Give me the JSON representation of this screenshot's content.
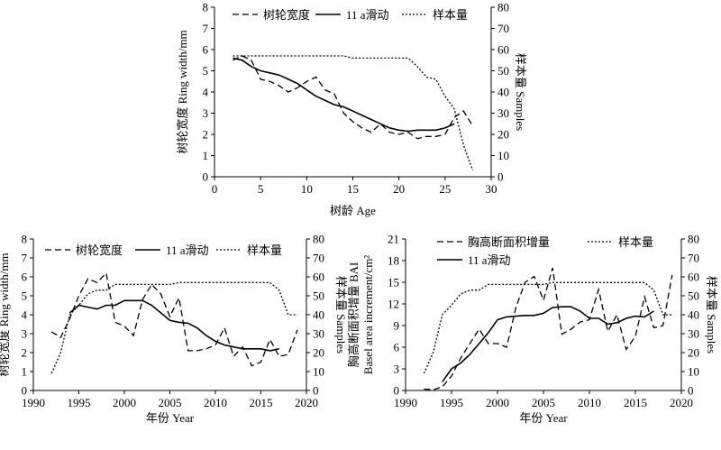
{
  "chart_data": [
    {
      "type": "line",
      "xlabel": "树龄 Age",
      "ylabel_left": "树轮宽度 Ring width/mm",
      "ylabel_right": "样本量 Samples",
      "xlim": [
        0,
        30
      ],
      "xticks": [
        0,
        5,
        10,
        15,
        20,
        25,
        30
      ],
      "ylim_left": [
        0,
        8
      ],
      "yticks_left": [
        0,
        1,
        2,
        3,
        4,
        5,
        6,
        7,
        8
      ],
      "ylim_right": [
        0,
        80
      ],
      "yticks_right": [
        0,
        10,
        20,
        30,
        40,
        50,
        60,
        70,
        80
      ],
      "legend": {
        "position": "top",
        "entries": [
          "树轮宽度",
          "11 a滑动",
          "样本量"
        ]
      },
      "series": [
        {
          "name": "树轮宽度",
          "axis": "left",
          "style": "dashed",
          "x": [
            2,
            3,
            4,
            5,
            6,
            7,
            8,
            9,
            10,
            11,
            12,
            13,
            14,
            15,
            16,
            17,
            18,
            19,
            20,
            21,
            22,
            23,
            24,
            25,
            26,
            27,
            28
          ],
          "y": [
            5.5,
            5.7,
            5.5,
            4.6,
            4.5,
            4.3,
            4.0,
            4.2,
            4.5,
            4.7,
            4.1,
            3.9,
            3.0,
            2.6,
            2.3,
            2.1,
            2.5,
            2.1,
            2.0,
            2.1,
            1.8,
            1.9,
            1.9,
            2.0,
            2.8,
            3.1,
            2.4
          ]
        },
        {
          "name": "11 a滑动",
          "axis": "left",
          "style": "solid",
          "x": [
            2,
            3,
            4,
            5,
            6,
            7,
            8,
            9,
            10,
            11,
            12,
            13,
            14,
            15,
            16,
            17,
            18,
            19,
            20,
            21,
            22,
            23,
            24,
            25,
            26
          ],
          "y": [
            5.6,
            5.5,
            5.2,
            5.0,
            4.9,
            4.8,
            4.6,
            4.4,
            4.1,
            3.8,
            3.6,
            3.4,
            3.3,
            3.1,
            2.9,
            2.7,
            2.5,
            2.3,
            2.2,
            2.15,
            2.2,
            2.2,
            2.2,
            2.3,
            2.5
          ]
        },
        {
          "name": "样本量",
          "axis": "right",
          "style": "dotted",
          "x": [
            2,
            3,
            4,
            5,
            6,
            7,
            8,
            9,
            10,
            11,
            12,
            13,
            14,
            15,
            16,
            17,
            18,
            19,
            20,
            21,
            22,
            23,
            24,
            25,
            26,
            27,
            28
          ],
          "y": [
            57,
            57,
            57,
            57,
            57,
            57,
            57,
            57,
            57,
            57,
            57,
            57,
            57,
            56,
            56,
            56,
            56,
            56,
            56,
            56,
            52,
            47,
            46,
            38,
            32,
            15,
            3
          ]
        }
      ]
    },
    {
      "type": "line",
      "xlabel": "年份 Year",
      "ylabel_left": "树轮宽度 Ring width/mm",
      "ylabel_right": "样本量 Samples",
      "xlim": [
        1990,
        2020
      ],
      "xticks": [
        1990,
        1995,
        2000,
        2005,
        2010,
        2015,
        2020
      ],
      "ylim_left": [
        0,
        8
      ],
      "yticks_left": [
        0,
        1,
        2,
        3,
        4,
        5,
        6,
        7,
        8
      ],
      "ylim_right": [
        0,
        80
      ],
      "yticks_right": [
        0,
        10,
        20,
        30,
        40,
        50,
        60,
        70,
        80
      ],
      "legend": {
        "position": "top",
        "entries": [
          "树轮宽度",
          "11 a滑动",
          "样本量"
        ]
      },
      "series": [
        {
          "name": "树轮宽度",
          "axis": "left",
          "style": "dashed",
          "x": [
            1992,
            1993,
            1994,
            1995,
            1996,
            1997,
            1998,
            1999,
            2000,
            2001,
            2002,
            2003,
            2004,
            2005,
            2006,
            2007,
            2008,
            2009,
            2010,
            2011,
            2012,
            2013,
            2014,
            2015,
            2016,
            2017,
            2018,
            2019
          ],
          "y": [
            3.1,
            2.8,
            3.8,
            5.0,
            5.9,
            5.7,
            6.2,
            3.6,
            3.4,
            2.9,
            4.8,
            5.6,
            5.1,
            3.9,
            4.9,
            2.1,
            2.1,
            2.2,
            2.4,
            3.3,
            1.8,
            2.3,
            1.3,
            1.5,
            2.7,
            1.8,
            1.9,
            3.2
          ]
        },
        {
          "name": "11 a滑动",
          "axis": "left",
          "style": "solid",
          "x": [
            1994,
            1995,
            1996,
            1997,
            1998,
            1999,
            2000,
            2001,
            2002,
            2003,
            2004,
            2005,
            2006,
            2007,
            2008,
            2009,
            2010,
            2011,
            2012,
            2013,
            2014,
            2015,
            2016,
            2017
          ],
          "y": [
            4.1,
            4.5,
            4.4,
            4.3,
            4.5,
            4.5,
            4.75,
            4.75,
            4.75,
            4.5,
            4.1,
            3.7,
            3.6,
            3.55,
            3.3,
            2.9,
            2.6,
            2.4,
            2.3,
            2.2,
            2.2,
            2.2,
            2.1,
            2.2
          ]
        },
        {
          "name": "样本量",
          "axis": "right",
          "style": "dotted",
          "x": [
            1992,
            1993,
            1994,
            1995,
            1996,
            1997,
            1998,
            1999,
            2000,
            2001,
            2002,
            2003,
            2004,
            2005,
            2006,
            2007,
            2008,
            2009,
            2010,
            2011,
            2012,
            2013,
            2014,
            2015,
            2016,
            2017,
            2018,
            2019
          ],
          "y": [
            9,
            20,
            40,
            45,
            51,
            53,
            53,
            56,
            56,
            56,
            56,
            56,
            56,
            56,
            57,
            57,
            57,
            57,
            57,
            57,
            57,
            57,
            57,
            57,
            57,
            53,
            40,
            40
          ]
        }
      ]
    },
    {
      "type": "line",
      "xlabel": "年份 Year",
      "ylabel_left": "胸高断面积增量 BAI Basel area increment/cm²",
      "ylabel_right": "样本量 Samples",
      "xlim": [
        1990,
        2020
      ],
      "xticks": [
        1990,
        1995,
        2000,
        2005,
        2010,
        2015,
        2020
      ],
      "ylim_left": [
        0,
        21
      ],
      "yticks_left": [
        0,
        3,
        6,
        9,
        12,
        15,
        18,
        21
      ],
      "ylim_right": [
        0,
        80
      ],
      "yticks_right": [
        0,
        10,
        20,
        30,
        40,
        50,
        60,
        70,
        80
      ],
      "legend": {
        "position": "top",
        "entries": [
          "胸高断面积增量",
          "样本量",
          "11 a滑动"
        ]
      },
      "series": [
        {
          "name": "胸高断面积增量",
          "axis": "left",
          "style": "dashed",
          "x": [
            1992,
            1993,
            1994,
            1995,
            1996,
            1997,
            1998,
            1999,
            2000,
            2001,
            2002,
            2003,
            2004,
            2005,
            2006,
            2007,
            2008,
            2009,
            2010,
            2011,
            2012,
            2013,
            2014,
            2015,
            2016,
            2017,
            2018,
            2019
          ],
          "y": [
            0.2,
            0.1,
            0.5,
            2.0,
            4.5,
            6.5,
            8.5,
            6.5,
            6.5,
            6.0,
            11.5,
            15.0,
            15.8,
            12.5,
            17.0,
            7.8,
            8.5,
            9.5,
            9.8,
            14.0,
            8.2,
            10.5,
            5.7,
            7.5,
            13.0,
            8.7,
            9.0,
            16.0
          ]
        },
        {
          "name": "11 a滑动",
          "axis": "left",
          "style": "solid",
          "x": [
            1994,
            1995,
            1996,
            1997,
            1998,
            1999,
            2000,
            2001,
            2002,
            2003,
            2004,
            2005,
            2006,
            2007,
            2008,
            2009,
            2010,
            2011,
            2012,
            2013,
            2014,
            2015,
            2016,
            2017
          ],
          "y": [
            1.2,
            3.0,
            3.8,
            5.0,
            6.5,
            8.0,
            9.8,
            10.2,
            10.3,
            10.4,
            10.4,
            10.7,
            11.5,
            11.6,
            11.6,
            11.0,
            10.0,
            10.0,
            9.2,
            9.4,
            10.0,
            10.3,
            10.2,
            11.0
          ]
        },
        {
          "name": "样本量",
          "axis": "right",
          "style": "dotted",
          "x": [
            1992,
            1993,
            1994,
            1995,
            1996,
            1997,
            1998,
            1999,
            2000,
            2001,
            2002,
            2003,
            2004,
            2005,
            2006,
            2007,
            2008,
            2009,
            2010,
            2011,
            2012,
            2013,
            2014,
            2015,
            2016,
            2017,
            2018,
            2019
          ],
          "y": [
            9,
            20,
            40,
            45,
            51,
            53,
            53,
            56,
            56,
            56,
            56,
            56,
            56,
            56,
            57,
            57,
            57,
            57,
            57,
            57,
            57,
            57,
            57,
            57,
            57,
            53,
            40,
            40
          ]
        }
      ]
    }
  ]
}
